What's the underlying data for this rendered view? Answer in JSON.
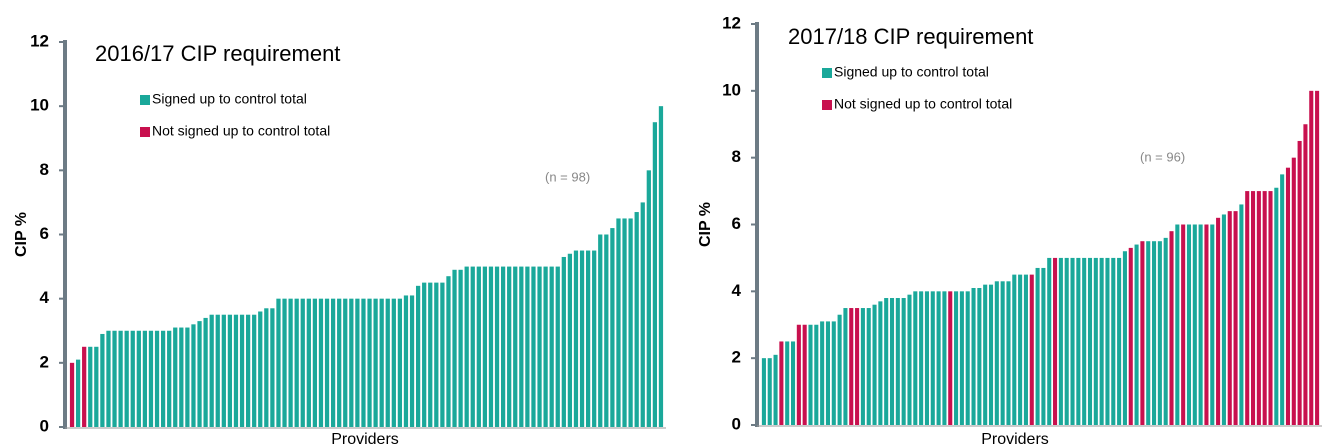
{
  "chart_data": [
    {
      "type": "bar",
      "title": "2016/17 CIP requirement",
      "ylabel": "CIP %",
      "xlabel": "Providers",
      "annotation": "(n = 98)",
      "ylim": [
        0,
        12
      ],
      "yticks": [
        0,
        2,
        4,
        6,
        8,
        10,
        12
      ],
      "categories": [
        null,
        null,
        null,
        null,
        null,
        null,
        null,
        null,
        null,
        null,
        null,
        null,
        null,
        null,
        null,
        null,
        null,
        null,
        null,
        null,
        null,
        null,
        null,
        null,
        null,
        null,
        null,
        null,
        null,
        null,
        null,
        null,
        null,
        null,
        null,
        null,
        null,
        null,
        null,
        null,
        null,
        null,
        null,
        null,
        null,
        null,
        null,
        null,
        null,
        null,
        null,
        null,
        null,
        null,
        null,
        null,
        null,
        null,
        null,
        null,
        null,
        null,
        null,
        null,
        null,
        null,
        null,
        null,
        null,
        null,
        null,
        null,
        null,
        null,
        null,
        null,
        null,
        null,
        null,
        null,
        null,
        null,
        null,
        null,
        null,
        null,
        null,
        null,
        null,
        null,
        null,
        null,
        null,
        null,
        null,
        null,
        null,
        null
      ],
      "series": [
        {
          "name": "Signed up to control total",
          "color": "#1aa89a",
          "values": [
            null,
            2.1,
            null,
            2.5,
            2.5,
            2.9,
            3,
            3,
            3,
            3,
            3,
            3,
            3,
            3,
            3,
            3,
            3,
            3.1,
            3.1,
            3.1,
            3.2,
            3.3,
            3.4,
            3.5,
            3.5,
            3.5,
            3.5,
            3.5,
            3.5,
            3.5,
            3.5,
            3.6,
            3.7,
            3.7,
            4,
            4,
            4,
            4,
            4,
            4,
            4,
            4,
            4,
            4,
            4,
            4,
            4,
            4,
            4,
            4,
            4,
            4,
            4,
            4,
            4,
            4.1,
            4.1,
            4.4,
            4.5,
            4.5,
            4.5,
            4.5,
            4.7,
            4.9,
            4.9,
            5,
            5,
            5,
            5,
            5,
            5,
            5,
            5,
            5,
            5,
            5,
            5,
            5,
            5,
            5,
            5,
            5.3,
            5.4,
            5.5,
            5.5,
            5.5,
            5.5,
            6,
            6,
            6.2,
            6.5,
            6.5,
            6.5,
            6.7,
            7,
            8,
            9.5,
            10
          ]
        },
        {
          "name": "Not signed up to control total",
          "color": "#c8104e",
          "values": [
            2,
            null,
            2.5,
            null,
            null,
            null,
            null,
            null,
            null,
            null,
            null,
            null,
            null,
            null,
            null,
            null,
            null,
            null,
            null,
            null,
            null,
            null,
            null,
            null,
            null,
            null,
            null,
            null,
            null,
            null,
            null,
            null,
            null,
            null,
            null,
            null,
            null,
            null,
            null,
            null,
            null,
            null,
            null,
            null,
            null,
            null,
            null,
            null,
            null,
            null,
            null,
            null,
            null,
            null,
            null,
            null,
            null,
            null,
            null,
            null,
            null,
            null,
            null,
            null,
            null,
            null,
            null,
            null,
            null,
            null,
            null,
            null,
            null,
            null,
            null,
            null,
            null,
            null,
            null,
            null,
            null,
            null,
            null,
            null,
            null,
            null,
            null,
            null,
            null,
            null,
            null,
            null,
            null,
            null,
            null,
            null,
            null,
            null
          ]
        }
      ]
    },
    {
      "type": "bar",
      "title": "2017/18 CIP requirement",
      "ylabel": "CIP %",
      "xlabel": "Providers",
      "annotation": "(n = 96)",
      "ylim": [
        0,
        12
      ],
      "yticks": [
        0,
        2,
        4,
        6,
        8,
        10,
        12
      ],
      "categories": [
        null,
        null,
        null,
        null,
        null,
        null,
        null,
        null,
        null,
        null,
        null,
        null,
        null,
        null,
        null,
        null,
        null,
        null,
        null,
        null,
        null,
        null,
        null,
        null,
        null,
        null,
        null,
        null,
        null,
        null,
        null,
        null,
        null,
        null,
        null,
        null,
        null,
        null,
        null,
        null,
        null,
        null,
        null,
        null,
        null,
        null,
        null,
        null,
        null,
        null,
        null,
        null,
        null,
        null,
        null,
        null,
        null,
        null,
        null,
        null,
        null,
        null,
        null,
        null,
        null,
        null,
        null,
        null,
        null,
        null,
        null,
        null,
        null,
        null,
        null,
        null,
        null,
        null,
        null,
        null,
        null,
        null,
        null,
        null,
        null,
        null,
        null,
        null,
        null,
        null,
        null,
        null,
        null,
        null,
        null,
        null
      ],
      "series": [
        {
          "name": "Signed up to control total",
          "color": "#1aa89a",
          "values": [
            2,
            2,
            2.1,
            null,
            2.5,
            2.5,
            null,
            null,
            3,
            3,
            3.1,
            3.1,
            3.1,
            3.3,
            3.5,
            null,
            null,
            3.5,
            3.5,
            3.6,
            3.7,
            3.8,
            3.8,
            3.8,
            3.8,
            3.9,
            4,
            4,
            4,
            4,
            4,
            4,
            null,
            4,
            4,
            4,
            4.1,
            4.1,
            4.2,
            4.2,
            4.3,
            4.3,
            4.3,
            4.5,
            4.5,
            4.5,
            null,
            4.7,
            4.7,
            5,
            null,
            5,
            5,
            5,
            5,
            5,
            5,
            5,
            5,
            5,
            5,
            5,
            5.2,
            null,
            5.4,
            null,
            5.5,
            5.5,
            5.5,
            5.6,
            null,
            6,
            null,
            6,
            6,
            6,
            null,
            6,
            null,
            6.3,
            null,
            null,
            6.6,
            null,
            null,
            null,
            null,
            null,
            7.1,
            7.5,
            null,
            null,
            null,
            null,
            null,
            null
          ]
        },
        {
          "name": "Not signed up to control total",
          "color": "#c8104e",
          "values": [
            null,
            null,
            null,
            2.5,
            null,
            null,
            3,
            3,
            null,
            null,
            null,
            null,
            null,
            null,
            null,
            3.5,
            3.5,
            null,
            null,
            null,
            null,
            null,
            null,
            null,
            null,
            null,
            null,
            null,
            null,
            null,
            null,
            null,
            4,
            null,
            null,
            null,
            null,
            null,
            null,
            null,
            null,
            null,
            null,
            null,
            null,
            null,
            4.5,
            null,
            null,
            null,
            5,
            null,
            null,
            null,
            null,
            null,
            null,
            null,
            null,
            null,
            null,
            null,
            null,
            5.3,
            null,
            5.5,
            null,
            null,
            null,
            null,
            5.8,
            null,
            6,
            null,
            null,
            null,
            6,
            null,
            6.2,
            null,
            6.4,
            6.4,
            null,
            7,
            7,
            7,
            7,
            7,
            null,
            null,
            7.7,
            8,
            8.5,
            9,
            10,
            10
          ]
        }
      ]
    }
  ]
}
